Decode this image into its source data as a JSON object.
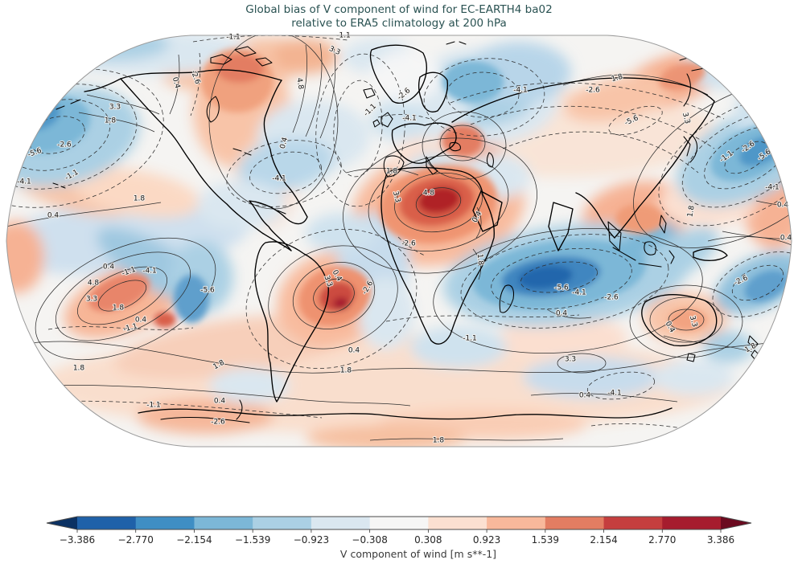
{
  "figure": {
    "title_line1": "Global bias of V component of wind for EC-EARTH4 ba02",
    "title_line2": "relative to ERA5 climatology at 200 hPa"
  },
  "colorbar": {
    "label": "V component of wind [m s**-1]",
    "ticks": [
      "−3.386",
      "−2.770",
      "−2.154",
      "−1.539",
      "−0.923",
      "−0.308",
      "0.308",
      "0.923",
      "1.539",
      "2.154",
      "2.770",
      "3.386"
    ],
    "segment_colors": [
      "#1f61a9",
      "#3f8ec4",
      "#7cb7d7",
      "#abd0e4",
      "#dae7f0",
      "#f6f6f5",
      "#fbe0d1",
      "#f8b89b",
      "#e37d62",
      "#c53e3e",
      "#a61c2e"
    ],
    "extend_left_color": "#0b3163",
    "extend_right_color": "#6b0a1f"
  },
  "contours": {
    "labels": {
      "n56": "-5.6",
      "n41": "-4.1",
      "n26": "-2.6",
      "n11": "-1.1",
      "p04": "0.4",
      "p18": "1.8",
      "p33": "3.3",
      "p48": "4.8"
    }
  },
  "chart_data": {
    "type": "heatmap",
    "title": "Global bias of V component of wind for EC-EARTH4 ba02 relative to ERA5 climatology at 200 hPa",
    "projection": "Robinson world map",
    "variable": "V component of wind",
    "model": "EC-EARTH4",
    "experiment": "ba02",
    "reference": "ERA5 climatology",
    "pressure_level": "200 hPa",
    "units": "m s**-1",
    "colorbar_ticks": [
      -3.386,
      -2.77,
      -2.154,
      -1.539,
      -0.923,
      -0.308,
      0.308,
      0.923,
      1.539,
      2.154,
      2.77,
      3.386
    ],
    "colorbar_extend": "both",
    "contour_levels_labeled": [
      -5.6,
      -4.1,
      -2.6,
      -1.1,
      0.4,
      1.8,
      3.3,
      4.8
    ],
    "contour_line_style": {
      "negative": "dashed",
      "positive": "solid"
    },
    "notable_extremes": [
      {
        "region": "North Africa (Sahara)",
        "value": 4.8
      },
      {
        "region": "Central Canada / Arctic",
        "value": 4.8
      },
      {
        "region": "Southeast Pacific (west of South America)",
        "value": 4.8
      },
      {
        "region": "Southeast Brazil",
        "value": 3.3
      },
      {
        "region": "Australia",
        "value": 3.3
      },
      {
        "region": "Tropical Indian Ocean",
        "value": -5.6
      },
      {
        "region": "Northwest Pacific",
        "value": -5.6
      },
      {
        "region": "Northeast Pacific",
        "value": -5.6
      }
    ]
  }
}
